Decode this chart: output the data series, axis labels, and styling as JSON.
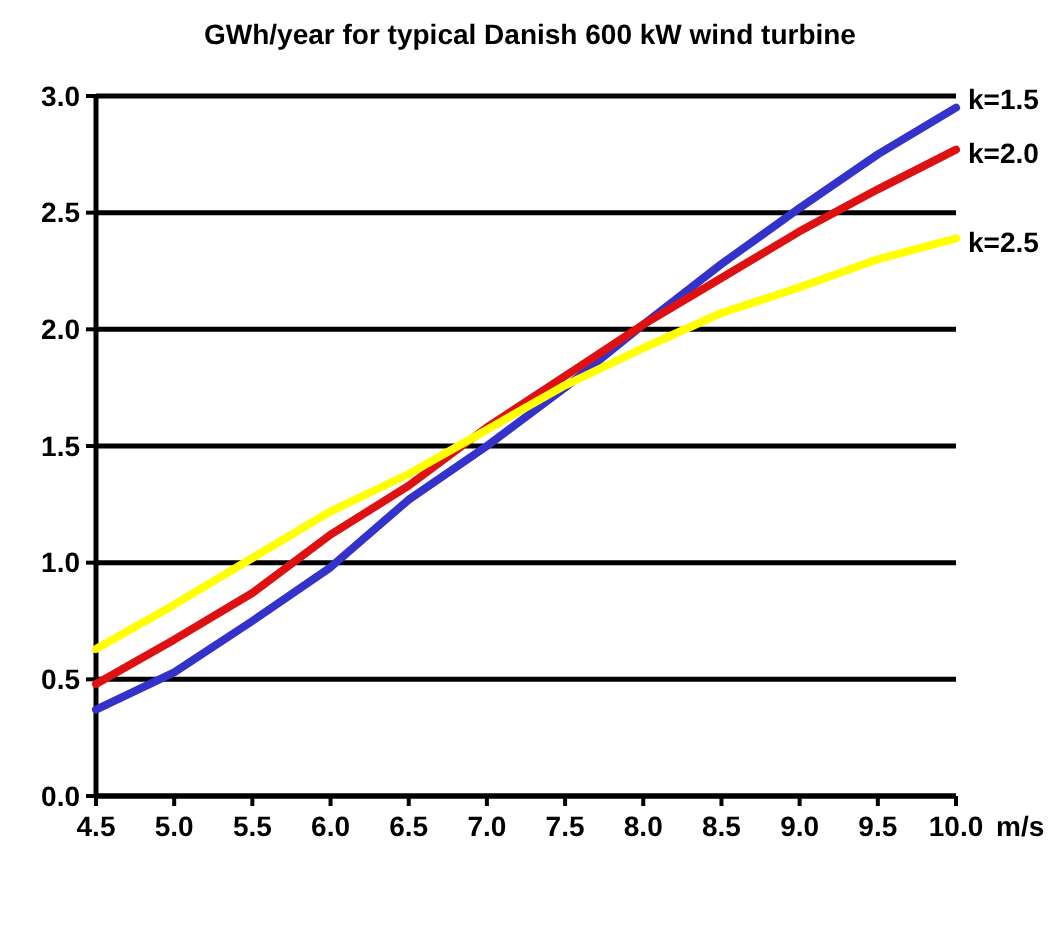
{
  "chart_data": {
    "type": "line",
    "title": "GWh/year for typical Danish 600 kW wind turbine",
    "xlabel": "m/s",
    "x": [
      4.5,
      5.0,
      5.5,
      6.0,
      6.5,
      7.0,
      7.5,
      8.0,
      8.5,
      9.0,
      9.5,
      10.0
    ],
    "series": [
      {
        "name": "k=1.5",
        "color": "#3333cc",
        "values": [
          0.37,
          0.53,
          0.75,
          0.98,
          1.27,
          1.5,
          1.75,
          2.02,
          2.28,
          2.52,
          2.75,
          2.95
        ]
      },
      {
        "name": "k=2.0",
        "color": "#dd1111",
        "values": [
          0.48,
          0.67,
          0.87,
          1.12,
          1.33,
          1.58,
          1.8,
          2.02,
          2.22,
          2.42,
          2.6,
          2.77
        ]
      },
      {
        "name": "k=2.5",
        "color": "#ffff00",
        "values": [
          0.63,
          0.82,
          1.02,
          1.22,
          1.38,
          1.57,
          1.76,
          1.92,
          2.07,
          2.18,
          2.3,
          2.39
        ]
      }
    ],
    "xlim": [
      4.5,
      10.0
    ],
    "xticks": [
      {
        "value": 4.5,
        "label": "4.5"
      },
      {
        "value": 5,
        "label": "5.0"
      },
      {
        "value": 5.5,
        "label": "5.5"
      },
      {
        "value": 6,
        "label": "6.0"
      },
      {
        "value": 6.5,
        "label": "6.5"
      },
      {
        "value": 7,
        "label": "7.0"
      },
      {
        "value": 7.5,
        "label": "7.5"
      },
      {
        "value": 8,
        "label": "8.0"
      },
      {
        "value": 8.5,
        "label": "8.5"
      },
      {
        "value": 9,
        "label": "9.0"
      },
      {
        "value": 9.5,
        "label": "9.5"
      },
      {
        "value": 10,
        "label": "10.0"
      }
    ],
    "ylim": [
      0,
      3.0
    ],
    "yticks": [
      {
        "value": 0,
        "label": "0.0"
      },
      {
        "value": 0.5,
        "label": "0.5"
      },
      {
        "value": 1,
        "label": "1.0"
      },
      {
        "value": 1.5,
        "label": "1.5"
      },
      {
        "value": 2,
        "label": "2.0"
      },
      {
        "value": 2.5,
        "label": "2.5"
      },
      {
        "value": 3,
        "label": "3.0"
      }
    ],
    "grid": "y",
    "legend": false,
    "marker": "none",
    "line_style": "solid"
  }
}
